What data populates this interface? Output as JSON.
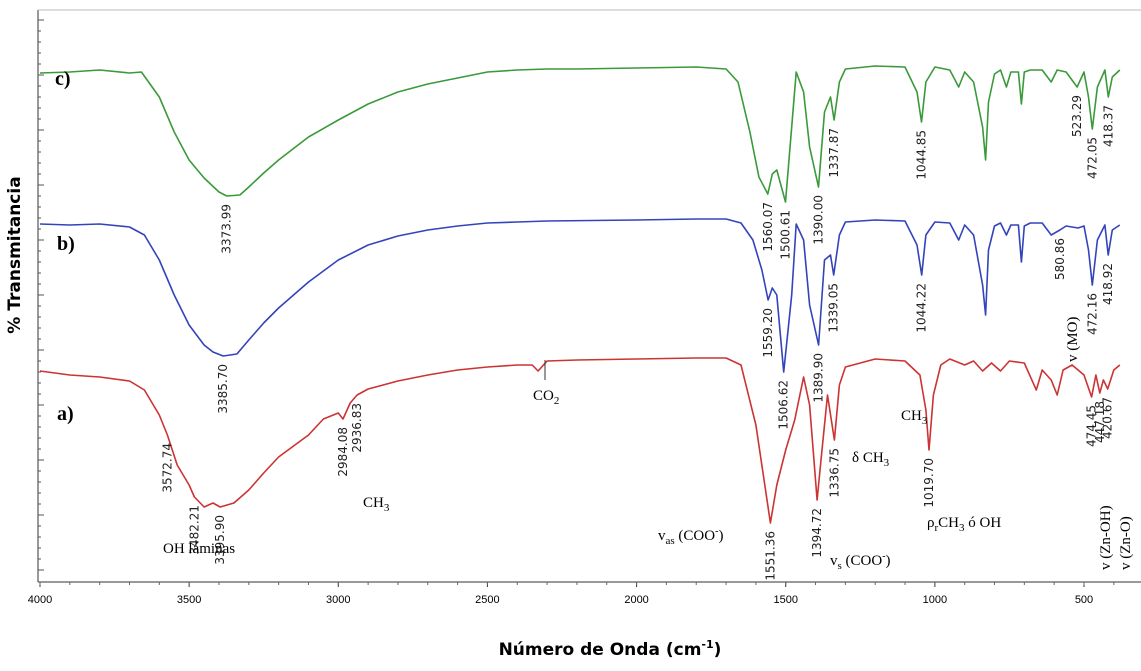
{
  "chart_data": {
    "type": "line",
    "xlabel": "Número de Onda (cm-1)",
    "xlabel_main": "Número de Onda (cm",
    "xlabel_sup": "-1",
    "xlabel_close": ")",
    "ylabel": "% Transmitancia",
    "xlim": [
      4000,
      370
    ],
    "x_ticks": [
      "4000",
      "3500",
      "3000",
      "2500",
      "2000",
      "1500",
      "1000",
      "500"
    ],
    "series": [
      {
        "name": "c)",
        "color": "#3a9a3a",
        "points": [
          [
            4000,
            0.31
          ],
          [
            3900,
            0.3
          ],
          [
            3800,
            0.28
          ],
          [
            3700,
            0.31
          ],
          [
            3660,
            0.3
          ],
          [
            3600,
            0.55
          ],
          [
            3550,
            0.9
          ],
          [
            3500,
            1.18
          ],
          [
            3450,
            1.36
          ],
          [
            3400,
            1.5
          ],
          [
            3373.99,
            1.54
          ],
          [
            3330,
            1.53
          ],
          [
            3300,
            1.45
          ],
          [
            3250,
            1.31
          ],
          [
            3200,
            1.18
          ],
          [
            3100,
            0.95
          ],
          [
            3000,
            0.78
          ],
          [
            2900,
            0.62
          ],
          [
            2800,
            0.5
          ],
          [
            2700,
            0.42
          ],
          [
            2600,
            0.36
          ],
          [
            2500,
            0.3
          ],
          [
            2400,
            0.28
          ],
          [
            2300,
            0.27
          ],
          [
            2200,
            0.27
          ],
          [
            2000,
            0.26
          ],
          [
            1800,
            0.25
          ],
          [
            1700,
            0.27
          ],
          [
            1660,
            0.4
          ],
          [
            1620,
            0.9
          ],
          [
            1590,
            1.35
          ],
          [
            1560.07,
            1.52
          ],
          [
            1545,
            1.32
          ],
          [
            1530,
            1.28
          ],
          [
            1500.61,
            1.6
          ],
          [
            1480,
            0.85
          ],
          [
            1465,
            0.3
          ],
          [
            1440,
            0.5
          ],
          [
            1420,
            1.05
          ],
          [
            1390.0,
            1.45
          ],
          [
            1370,
            0.7
          ],
          [
            1350,
            0.55
          ],
          [
            1337.87,
            0.78
          ],
          [
            1320,
            0.4
          ],
          [
            1300,
            0.27
          ],
          [
            1200,
            0.24
          ],
          [
            1100,
            0.25
          ],
          [
            1060,
            0.5
          ],
          [
            1044.85,
            0.8
          ],
          [
            1030,
            0.4
          ],
          [
            1000,
            0.25
          ],
          [
            950,
            0.28
          ],
          [
            920,
            0.45
          ],
          [
            900,
            0.3
          ],
          [
            870,
            0.4
          ],
          [
            840,
            0.85
          ],
          [
            830,
            1.18
          ],
          [
            820,
            0.6
          ],
          [
            800,
            0.32
          ],
          [
            780,
            0.28
          ],
          [
            760,
            0.45
          ],
          [
            745,
            0.3
          ],
          [
            720,
            0.3
          ],
          [
            710,
            0.62
          ],
          [
            700,
            0.3
          ],
          [
            680,
            0.28
          ],
          [
            640,
            0.28
          ],
          [
            610,
            0.4
          ],
          [
            590,
            0.28
          ],
          [
            560,
            0.3
          ],
          [
            523.29,
            0.45
          ],
          [
            500,
            0.3
          ],
          [
            485,
            0.55
          ],
          [
            472.05,
            0.87
          ],
          [
            455,
            0.45
          ],
          [
            430,
            0.28
          ],
          [
            418.37,
            0.55
          ],
          [
            405,
            0.35
          ],
          [
            380,
            0.28
          ]
        ]
      },
      {
        "name": "b)",
        "color": "#3344bb",
        "points": [
          [
            4000,
            0.34
          ],
          [
            3900,
            0.35
          ],
          [
            3800,
            0.34
          ],
          [
            3700,
            0.37
          ],
          [
            3650,
            0.45
          ],
          [
            3600,
            0.7
          ],
          [
            3550,
            1.05
          ],
          [
            3500,
            1.35
          ],
          [
            3450,
            1.55
          ],
          [
            3420,
            1.62
          ],
          [
            3385.7,
            1.66
          ],
          [
            3340,
            1.64
          ],
          [
            3300,
            1.5
          ],
          [
            3250,
            1.33
          ],
          [
            3200,
            1.18
          ],
          [
            3100,
            0.92
          ],
          [
            3000,
            0.7
          ],
          [
            2900,
            0.55
          ],
          [
            2800,
            0.46
          ],
          [
            2700,
            0.4
          ],
          [
            2600,
            0.36
          ],
          [
            2500,
            0.33
          ],
          [
            2400,
            0.32
          ],
          [
            2300,
            0.31
          ],
          [
            2000,
            0.3
          ],
          [
            1800,
            0.29
          ],
          [
            1700,
            0.29
          ],
          [
            1650,
            0.33
          ],
          [
            1610,
            0.5
          ],
          [
            1580,
            0.8
          ],
          [
            1559.2,
            1.1
          ],
          [
            1545,
            0.98
          ],
          [
            1530,
            1.05
          ],
          [
            1506.62,
            1.82
          ],
          [
            1480,
            1.05
          ],
          [
            1465,
            0.34
          ],
          [
            1440,
            0.5
          ],
          [
            1420,
            1.15
          ],
          [
            1389.9,
            1.55
          ],
          [
            1370,
            0.7
          ],
          [
            1350,
            0.65
          ],
          [
            1339.05,
            0.85
          ],
          [
            1320,
            0.45
          ],
          [
            1300,
            0.32
          ],
          [
            1200,
            0.3
          ],
          [
            1100,
            0.31
          ],
          [
            1060,
            0.55
          ],
          [
            1044.22,
            0.85
          ],
          [
            1030,
            0.45
          ],
          [
            1000,
            0.32
          ],
          [
            950,
            0.33
          ],
          [
            920,
            0.5
          ],
          [
            900,
            0.35
          ],
          [
            870,
            0.45
          ],
          [
            840,
            0.95
          ],
          [
            830,
            1.25
          ],
          [
            820,
            0.6
          ],
          [
            800,
            0.36
          ],
          [
            780,
            0.33
          ],
          [
            760,
            0.45
          ],
          [
            745,
            0.35
          ],
          [
            720,
            0.35
          ],
          [
            710,
            0.72
          ],
          [
            700,
            0.36
          ],
          [
            680,
            0.33
          ],
          [
            640,
            0.33
          ],
          [
            610,
            0.45
          ],
          [
            580.86,
            0.4
          ],
          [
            560,
            0.36
          ],
          [
            520,
            0.38
          ],
          [
            500,
            0.36
          ],
          [
            485,
            0.6
          ],
          [
            472.16,
            0.95
          ],
          [
            455,
            0.5
          ],
          [
            430,
            0.35
          ],
          [
            418.92,
            0.65
          ],
          [
            405,
            0.4
          ],
          [
            380,
            0.35
          ]
        ]
      },
      {
        "name": "a)",
        "color": "#cc3333",
        "points": [
          [
            4000,
            0.26
          ],
          [
            3900,
            0.3
          ],
          [
            3800,
            0.32
          ],
          [
            3700,
            0.36
          ],
          [
            3650,
            0.45
          ],
          [
            3600,
            0.7
          ],
          [
            3572.74,
            0.9
          ],
          [
            3540,
            1.2
          ],
          [
            3500,
            1.4
          ],
          [
            3482.21,
            1.52
          ],
          [
            3450,
            1.62
          ],
          [
            3420,
            1.58
          ],
          [
            3395.9,
            1.62
          ],
          [
            3350,
            1.58
          ],
          [
            3300,
            1.45
          ],
          [
            3250,
            1.28
          ],
          [
            3200,
            1.12
          ],
          [
            3100,
            0.9
          ],
          [
            3050,
            0.74
          ],
          [
            3000,
            0.68
          ],
          [
            2984.08,
            0.74
          ],
          [
            2960,
            0.58
          ],
          [
            2936.83,
            0.5
          ],
          [
            2900,
            0.44
          ],
          [
            2800,
            0.36
          ],
          [
            2700,
            0.3
          ],
          [
            2600,
            0.25
          ],
          [
            2500,
            0.22
          ],
          [
            2400,
            0.2
          ],
          [
            2350,
            0.2
          ],
          [
            2330,
            0.26
          ],
          [
            2300,
            0.16
          ],
          [
            2200,
            0.15
          ],
          [
            2000,
            0.14
          ],
          [
            1800,
            0.13
          ],
          [
            1700,
            0.13
          ],
          [
            1650,
            0.2
          ],
          [
            1600,
            0.8
          ],
          [
            1570,
            1.4
          ],
          [
            1551.36,
            1.78
          ],
          [
            1530,
            1.4
          ],
          [
            1500,
            1.05
          ],
          [
            1470,
            0.75
          ],
          [
            1440,
            0.32
          ],
          [
            1420,
            0.6
          ],
          [
            1394.72,
            1.55
          ],
          [
            1380,
            1.1
          ],
          [
            1360,
            0.5
          ],
          [
            1336.75,
            0.95
          ],
          [
            1320,
            0.4
          ],
          [
            1300,
            0.22
          ],
          [
            1200,
            0.14
          ],
          [
            1100,
            0.16
          ],
          [
            1050,
            0.3
          ],
          [
            1030,
            0.65
          ],
          [
            1019.7,
            1.05
          ],
          [
            1005,
            0.5
          ],
          [
            980,
            0.2
          ],
          [
            950,
            0.14
          ],
          [
            900,
            0.2
          ],
          [
            870,
            0.16
          ],
          [
            840,
            0.26
          ],
          [
            810,
            0.18
          ],
          [
            780,
            0.26
          ],
          [
            750,
            0.16
          ],
          [
            700,
            0.18
          ],
          [
            660,
            0.45
          ],
          [
            640,
            0.25
          ],
          [
            610,
            0.35
          ],
          [
            590,
            0.5
          ],
          [
            570,
            0.25
          ],
          [
            540,
            0.2
          ],
          [
            500,
            0.3
          ],
          [
            474.45,
            0.52
          ],
          [
            460,
            0.3
          ],
          [
            447.18,
            0.48
          ],
          [
            435,
            0.35
          ],
          [
            420.67,
            0.44
          ],
          [
            400,
            0.25
          ],
          [
            380,
            0.2
          ]
        ]
      }
    ],
    "peak_labels": [
      {
        "series": "c)",
        "x": 3373.99,
        "text": "3373.99"
      },
      {
        "series": "c)",
        "x": 1560.07,
        "text": "1560.07"
      },
      {
        "series": "c)",
        "x": 1500.61,
        "text": "1500.61"
      },
      {
        "series": "c)",
        "x": 1390.0,
        "text": "1390.00"
      },
      {
        "series": "c)",
        "x": 1337.87,
        "text": "1337.87"
      },
      {
        "series": "c)",
        "x": 1044.85,
        "text": "1044.85"
      },
      {
        "series": "c)",
        "x": 523.29,
        "text": "523.29"
      },
      {
        "series": "c)",
        "x": 472.05,
        "text": "472.05"
      },
      {
        "series": "c)",
        "x": 418.37,
        "text": "418.37"
      },
      {
        "series": "b)",
        "x": 3385.7,
        "text": "3385.70"
      },
      {
        "series": "b)",
        "x": 1559.2,
        "text": "1559.20"
      },
      {
        "series": "b)",
        "x": 1506.62,
        "text": "1506.62"
      },
      {
        "series": "b)",
        "x": 1389.9,
        "text": "1389.90"
      },
      {
        "series": "b)",
        "x": 1339.05,
        "text": "1339.05"
      },
      {
        "series": "b)",
        "x": 1044.22,
        "text": "1044.22"
      },
      {
        "series": "b)",
        "x": 580.86,
        "text": "580.86"
      },
      {
        "series": "b)",
        "x": 472.16,
        "text": "472.16"
      },
      {
        "series": "b)",
        "x": 418.92,
        "text": "418.92"
      },
      {
        "series": "a)",
        "x": 3572.74,
        "text": "3572.74"
      },
      {
        "series": "a)",
        "x": 3482.21,
        "text": "3482.21"
      },
      {
        "series": "a)",
        "x": 3395.9,
        "text": "3395.90"
      },
      {
        "series": "a)",
        "x": 2984.08,
        "text": "2984.08"
      },
      {
        "series": "a)",
        "x": 2936.83,
        "text": "2936.83"
      },
      {
        "series": "a)",
        "x": 1551.36,
        "text": "1551.36"
      },
      {
        "series": "a)",
        "x": 1394.72,
        "text": "1394.72"
      },
      {
        "series": "a)",
        "x": 1336.75,
        "text": "1336.75"
      },
      {
        "series": "a)",
        "x": 1019.7,
        "text": "1019.70"
      },
      {
        "series": "a)",
        "x": 474.45,
        "text": "474.45"
      },
      {
        "series": "a)",
        "x": 447.18,
        "text": "447.18"
      },
      {
        "series": "a)",
        "x": 420.67,
        "text": "420.67"
      }
    ],
    "annotations": {
      "oh_laminas": "OH láminas",
      "ch3_a": "CH",
      "ch3_a_sub": "3",
      "co2": "CO",
      "co2_sub": "2",
      "v_as": "v",
      "v_as_sub": "as",
      "v_as_rest": " (COO",
      "v_as_sup": "-",
      "v_as_close": ")",
      "v_s": "v",
      "v_s_sub": "s",
      "v_s_rest": " (COO",
      "v_s_sup": "-",
      "v_s_close": ")",
      "delta_ch3": "δ CH",
      "delta_ch3_sub": "3",
      "ch3_b": "CH",
      "ch3_b_sub": "3",
      "rho": "ρ",
      "rho_sub": "r",
      "rho_rest": "CH",
      "rho_rest_sub": "3",
      "rho_tail": " ó OH",
      "v_mo": "v (MO)",
      "v_znoh": "v (Zn-OH)",
      "v_zno": "v (Zn-O)"
    }
  }
}
